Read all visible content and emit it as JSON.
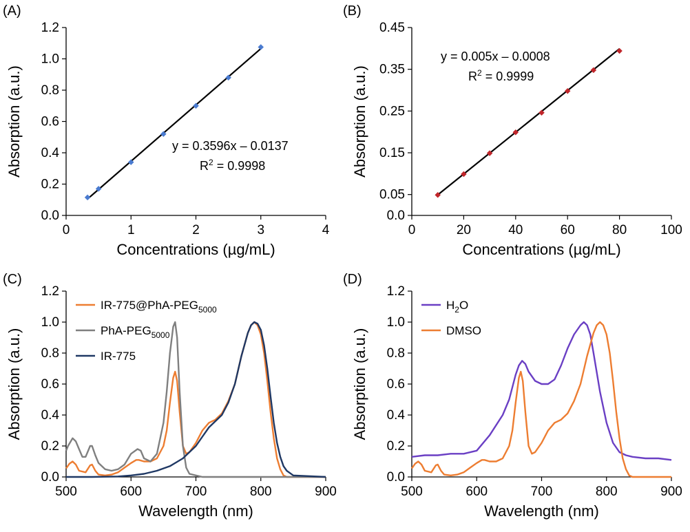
{
  "figure": {
    "panels": [
      "A",
      "B",
      "C",
      "D"
    ]
  },
  "chart_data": [
    {
      "panel_label": "(A)",
      "type": "scatter",
      "xlabel": "Concentrations (µg/mL)",
      "ylabel": "Absorption (a.u.)",
      "xlim": [
        0,
        4
      ],
      "ylim": [
        0,
        1.2
      ],
      "xticks": [
        0,
        1,
        2,
        3,
        4
      ],
      "yticks": [
        0.0,
        0.2,
        0.4,
        0.6,
        0.8,
        1.0,
        1.2
      ],
      "ytick_labels": [
        "0.0",
        "0.2",
        "0.4",
        "0.6",
        "0.8",
        "1.0",
        "1.2"
      ],
      "grid": false,
      "points": {
        "x": [
          0.33,
          0.5,
          1.0,
          1.5,
          2.0,
          2.5,
          3.0
        ],
        "y": [
          0.115,
          0.17,
          0.34,
          0.52,
          0.7,
          0.88,
          1.075
        ]
      },
      "marker_color": "#4a7bd0",
      "fit": {
        "slope": 0.3596,
        "intercept": -0.0137,
        "x_range": [
          0.33,
          3.0
        ],
        "color": "#000000"
      },
      "equation": "y = 0.3596x – 0.0137",
      "r2_prefix": "R",
      "r2_value": " = 0.9998"
    },
    {
      "panel_label": "(B)",
      "type": "scatter",
      "xlabel": "Concentrations (µg/mL)",
      "ylabel": "Absorption (a.u.)",
      "xlim": [
        0,
        100
      ],
      "ylim": [
        0,
        0.45
      ],
      "xticks": [
        0,
        20,
        40,
        60,
        80,
        100
      ],
      "yticks": [
        0.0,
        0.05,
        0.15,
        0.25,
        0.35,
        0.45
      ],
      "ytick_labels": [
        "0.0",
        "0.05",
        "0.15",
        "0.25",
        "0.35",
        "0.45"
      ],
      "grid": false,
      "points": {
        "x": [
          10,
          20,
          30,
          40,
          50,
          60,
          70,
          80
        ],
        "y": [
          0.049,
          0.099,
          0.149,
          0.199,
          0.246,
          0.298,
          0.348,
          0.394
        ]
      },
      "marker_color": "#c0262b",
      "fit": {
        "slope": 0.005,
        "intercept": -0.0008,
        "x_range": [
          10,
          80
        ],
        "color": "#000000"
      },
      "equation": "y = 0.005x – 0.0008",
      "r2_prefix": "R",
      "r2_value": " = 0.9999"
    },
    {
      "panel_label": "(C)",
      "type": "line",
      "xlabel": "Wavelength (nm)",
      "ylabel": "Absorption (a.u.)",
      "xlim": [
        500,
        900
      ],
      "ylim": [
        0,
        1.2
      ],
      "xticks": [
        500,
        600,
        700,
        800,
        900
      ],
      "yticks": [
        0.0,
        0.2,
        0.4,
        0.6,
        0.8,
        1.0,
        1.2
      ],
      "ytick_labels": [
        "0.0",
        "0.2",
        "0.4",
        "0.6",
        "0.8",
        "1.0",
        "1.2"
      ],
      "grid": false,
      "legend_position": "top-left",
      "series": [
        {
          "name": "IR-775@PhA-PEG",
          "name_sub": "5000",
          "color": "#ed7d31",
          "x": [
            500,
            505,
            510,
            515,
            520,
            530,
            537,
            540,
            545,
            550,
            560,
            570,
            580,
            590,
            600,
            608,
            612,
            620,
            630,
            640,
            650,
            655,
            660,
            665,
            668,
            671,
            675,
            680,
            685,
            690,
            700,
            710,
            720,
            730,
            740,
            750,
            760,
            770,
            780,
            785,
            790,
            795,
            800,
            805,
            810,
            815,
            820,
            825,
            830,
            835,
            840,
            850,
            900
          ],
          "y": [
            0.055,
            0.085,
            0.1,
            0.08,
            0.04,
            0.03,
            0.075,
            0.08,
            0.04,
            0.015,
            0.01,
            0.015,
            0.03,
            0.06,
            0.09,
            0.11,
            0.11,
            0.1,
            0.1,
            0.12,
            0.2,
            0.3,
            0.48,
            0.64,
            0.68,
            0.62,
            0.42,
            0.2,
            0.15,
            0.16,
            0.22,
            0.3,
            0.35,
            0.37,
            0.41,
            0.49,
            0.6,
            0.78,
            0.93,
            0.98,
            1.0,
            0.98,
            0.92,
            0.8,
            0.62,
            0.42,
            0.25,
            0.12,
            0.05,
            0.01,
            0.0,
            0.0,
            0.0
          ]
        },
        {
          "name": "PhA-PEG",
          "name_sub": "5000",
          "color": "#7f7f7f",
          "x": [
            500,
            503,
            510,
            515,
            520,
            525,
            530,
            537,
            540,
            545,
            550,
            560,
            570,
            580,
            590,
            600,
            610,
            615,
            620,
            630,
            640,
            650,
            655,
            660,
            665,
            668,
            671,
            675,
            680,
            685,
            690,
            700,
            710,
            900
          ],
          "y": [
            0.17,
            0.2,
            0.25,
            0.23,
            0.18,
            0.13,
            0.13,
            0.2,
            0.2,
            0.14,
            0.09,
            0.05,
            0.04,
            0.05,
            0.08,
            0.15,
            0.18,
            0.17,
            0.12,
            0.1,
            0.15,
            0.35,
            0.55,
            0.8,
            0.97,
            1.0,
            0.9,
            0.55,
            0.2,
            0.06,
            0.02,
            0.01,
            0.0,
            0.0
          ]
        },
        {
          "name": "IR-775",
          "name_sub": "",
          "color": "#1f3864",
          "x": [
            500,
            540,
            580,
            600,
            620,
            640,
            660,
            680,
            700,
            710,
            720,
            730,
            740,
            750,
            760,
            770,
            780,
            785,
            790,
            795,
            800,
            805,
            810,
            815,
            820,
            825,
            830,
            835,
            840,
            850,
            900
          ],
          "y": [
            0.0,
            0.0,
            0.003,
            0.01,
            0.02,
            0.04,
            0.07,
            0.12,
            0.2,
            0.26,
            0.32,
            0.36,
            0.4,
            0.48,
            0.6,
            0.78,
            0.93,
            0.98,
            1.0,
            0.99,
            0.95,
            0.85,
            0.7,
            0.52,
            0.35,
            0.22,
            0.13,
            0.07,
            0.04,
            0.01,
            0.0
          ]
        }
      ]
    },
    {
      "panel_label": "(D)",
      "type": "line",
      "xlabel": "Wavelength (nm)",
      "ylabel": "Absorption (a.u.)",
      "xlim": [
        500,
        900
      ],
      "ylim": [
        0,
        1.2
      ],
      "xticks": [
        500,
        600,
        700,
        800,
        900
      ],
      "yticks": [
        0.0,
        0.2,
        0.4,
        0.6,
        0.8,
        1.0,
        1.2
      ],
      "ytick_labels": [
        "0.0",
        "0.2",
        "0.4",
        "0.6",
        "0.8",
        "1.0",
        "1.2"
      ],
      "grid": false,
      "legend_position": "top-left",
      "series": [
        {
          "name": "H",
          "name_sub": "2",
          "name_after": "O",
          "color": "#6a3fc4",
          "x": [
            500,
            520,
            540,
            560,
            580,
            600,
            620,
            640,
            650,
            660,
            665,
            670,
            675,
            680,
            690,
            700,
            710,
            720,
            730,
            740,
            750,
            760,
            765,
            770,
            775,
            780,
            790,
            800,
            810,
            820,
            830,
            840,
            860,
            880,
            900
          ],
          "y": [
            0.13,
            0.14,
            0.14,
            0.15,
            0.15,
            0.17,
            0.27,
            0.4,
            0.5,
            0.66,
            0.72,
            0.75,
            0.73,
            0.68,
            0.62,
            0.6,
            0.6,
            0.63,
            0.72,
            0.83,
            0.92,
            0.98,
            1.0,
            0.98,
            0.92,
            0.8,
            0.55,
            0.35,
            0.22,
            0.16,
            0.14,
            0.13,
            0.12,
            0.12,
            0.11
          ]
        },
        {
          "name": "DMSO",
          "name_sub": "",
          "name_after": "",
          "color": "#ed7d31",
          "x": [
            500,
            505,
            510,
            515,
            520,
            530,
            537,
            540,
            545,
            550,
            560,
            570,
            580,
            590,
            600,
            608,
            612,
            620,
            630,
            640,
            650,
            655,
            660,
            665,
            668,
            671,
            675,
            680,
            685,
            690,
            700,
            710,
            720,
            730,
            740,
            750,
            760,
            770,
            780,
            785,
            790,
            795,
            800,
            805,
            810,
            815,
            820,
            825,
            830,
            835,
            840,
            850,
            900
          ],
          "y": [
            0.055,
            0.085,
            0.1,
            0.08,
            0.04,
            0.03,
            0.075,
            0.08,
            0.04,
            0.015,
            0.01,
            0.015,
            0.03,
            0.06,
            0.09,
            0.11,
            0.11,
            0.1,
            0.1,
            0.12,
            0.2,
            0.3,
            0.48,
            0.64,
            0.68,
            0.62,
            0.42,
            0.2,
            0.15,
            0.16,
            0.22,
            0.3,
            0.35,
            0.37,
            0.41,
            0.49,
            0.6,
            0.78,
            0.93,
            0.98,
            1.0,
            0.98,
            0.92,
            0.8,
            0.62,
            0.42,
            0.25,
            0.12,
            0.05,
            0.01,
            0.0,
            0.0,
            0.0
          ]
        }
      ]
    }
  ]
}
